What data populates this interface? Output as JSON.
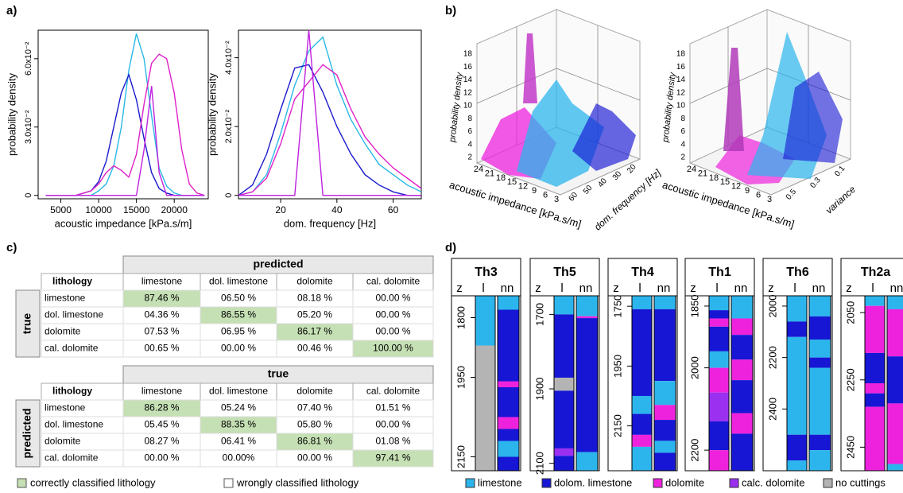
{
  "panel_labels": [
    "a)",
    "b)",
    "c)",
    "d)"
  ],
  "chart_data": [
    {
      "type": "line",
      "xlabel": "acoustic impedance [kPa.s/m]",
      "ylabel": "probability density",
      "x": [
        3000,
        5000,
        7000,
        9000,
        10000,
        11000,
        12000,
        13000,
        14000,
        15000,
        16000,
        17000,
        18000,
        19000,
        20000,
        21000,
        22000,
        23000,
        24000
      ],
      "xlim": [
        2000,
        24500
      ],
      "xticks": [
        5000,
        10000,
        15000,
        20000
      ],
      "ylim": [
        -0.0015,
        0.0725
      ],
      "yticks": [
        0,
        {
          "value": 0.03,
          "label": "3.0x10⁻²"
        },
        {
          "value": 0.06,
          "label": "6.0x10⁻²"
        }
      ],
      "series": [
        {
          "color": "#29b8e6",
          "values": [
            0,
            0,
            0,
            0,
            0.002,
            0.005,
            0.013,
            0.03,
            0.055,
            0.071,
            0.06,
            0.035,
            0.012,
            0.004,
            0.001,
            0,
            0,
            0,
            0
          ]
        },
        {
          "color": "#1a1acc",
          "values": [
            0,
            0,
            0,
            0.002,
            0.006,
            0.015,
            0.03,
            0.045,
            0.053,
            0.042,
            0.025,
            0.01,
            0.003,
            0.001,
            0,
            0,
            0,
            0,
            0
          ]
        },
        {
          "color": "#e020c8",
          "values": [
            0,
            0,
            0,
            0.002,
            0.005,
            0.01,
            0.013,
            0.011,
            0.008,
            0.018,
            0.04,
            0.058,
            0.062,
            0.06,
            0.045,
            0.02,
            0.005,
            0.001,
            0
          ]
        },
        {
          "color": "#c020e0",
          "values": [
            0,
            0,
            0,
            0,
            0,
            0,
            0,
            0,
            0,
            0,
            0.02,
            0.048,
            0.01,
            0,
            0,
            0,
            0,
            0,
            0
          ]
        }
      ]
    },
    {
      "type": "line",
      "xlabel": "dom. frequency [Hz]",
      "ylabel": "probability density",
      "x": [
        5,
        10,
        15,
        20,
        25,
        30,
        35,
        40,
        45,
        50,
        55,
        60,
        65,
        70
      ],
      "xlim": [
        5,
        70
      ],
      "xticks": [
        20,
        40,
        60
      ],
      "ylim": [
        -0.001,
        0.048
      ],
      "yticks": [
        0,
        {
          "value": 0.02,
          "label": "2.0x10⁻²"
        },
        {
          "value": 0.04,
          "label": "4.0x10⁻²"
        }
      ],
      "series": [
        {
          "color": "#29b8e6",
          "values": [
            0,
            0.001,
            0.006,
            0.018,
            0.032,
            0.042,
            0.046,
            0.032,
            0.022,
            0.015,
            0.009,
            0.006,
            0.003,
            0.001
          ]
        },
        {
          "color": "#1a1acc",
          "values": [
            0,
            0.003,
            0.012,
            0.025,
            0.037,
            0.038,
            0.03,
            0.02,
            0.012,
            0.006,
            0.003,
            0.001,
            0,
            0
          ]
        },
        {
          "color": "#e020c8",
          "values": [
            0,
            0.001,
            0.005,
            0.015,
            0.028,
            0.033,
            0.038,
            0.035,
            0.025,
            0.017,
            0.012,
            0.008,
            0.005,
            0.002
          ]
        },
        {
          "color": "#c020e0",
          "values": [
            0,
            0,
            0,
            0,
            0,
            0.048,
            0,
            0,
            0,
            0,
            0,
            0,
            0,
            0
          ]
        }
      ]
    }
  ],
  "panel_b": {
    "plots": [
      {
        "zlabel": "probability density",
        "xlabel": "acoustic impedance [kPa.s/m]",
        "ylabel": "dom. frequency [Hz]",
        "zticks": [
          2,
          4,
          6,
          8,
          10,
          12,
          14,
          16,
          18
        ],
        "xticks": [
          24,
          21,
          18,
          15,
          12,
          9,
          6,
          3
        ],
        "yticks": [
          60,
          50,
          40,
          30,
          20
        ]
      },
      {
        "zlabel": "probability density",
        "xlabel": "acoustic impedance [kPa.s/m]",
        "ylabel": "variance",
        "zticks": [
          2,
          4,
          6,
          8,
          10,
          12,
          14,
          16,
          18
        ],
        "xticks": [
          24,
          21,
          18,
          15,
          12,
          9,
          6,
          3
        ],
        "yticks": [
          0.5,
          0.3,
          0.1
        ]
      }
    ]
  },
  "panel_c": {
    "highlight_color": "#c5e0b4",
    "tables": [
      {
        "group_header": "predicted",
        "side_label": "true",
        "header": [
          "lithology",
          "limestone",
          "dol. limestone",
          "dolomite",
          "cal. dolomite"
        ],
        "rows": [
          [
            "limestone",
            "87.46 %",
            "06.50 %",
            "08.18 %",
            "00.00 %"
          ],
          [
            "dol. limestone",
            "04.36 %",
            "86.55 %",
            "05.20 %",
            "00.00 %"
          ],
          [
            "dolomite",
            "07.53 %",
            "06.95 %",
            "86.17 %",
            "00.00 %"
          ],
          [
            "cal. dolomite",
            "00.65 %",
            "00.00 %",
            "00.46 %",
            "100.00 %"
          ]
        ]
      },
      {
        "group_header": "true",
        "side_label": "predicted",
        "header": [
          "lithology",
          "limestone",
          "dol. limestone",
          "dolomite",
          "cal. dolomite"
        ],
        "rows": [
          [
            "limestone",
            "86.28 %",
            "05.24 %",
            "07.40 %",
            "01.51 %"
          ],
          [
            "dol. limestone",
            "05.45 %",
            "88.35 %",
            "05.80 %",
            "00.00 %"
          ],
          [
            "dolomite",
            "08.27 %",
            "06.41 %",
            "86.81 %",
            "01.08 %"
          ],
          [
            "cal. dolomite",
            "00.00 %",
            "00.00%",
            "00.00 %",
            "97.41 %"
          ]
        ]
      }
    ],
    "legend": [
      "correctly classified lithology",
      "wrongly classified lithology"
    ]
  },
  "panel_d": {
    "legend": [
      {
        "label": "limestone",
        "color": "#2bb5ec"
      },
      {
        "label": "dolom. limestone",
        "color": "#1616d4"
      },
      {
        "label": "dolomite",
        "color": "#ee22dd"
      },
      {
        "label": "calc. dolomite",
        "color": "#9b30f0"
      },
      {
        "label": "no cuttings",
        "color": "#b4b4b4"
      }
    ],
    "wells": [
      {
        "name": "Th3",
        "columns": [
          "z",
          "l",
          "nn"
        ],
        "ylim": [
          1745,
          2185
        ],
        "yticks": [
          1800,
          1950,
          2150
        ],
        "lithology": [
          [
            1745,
            1870,
            0
          ],
          [
            1870,
            2185,
            4
          ]
        ],
        "nn": [
          [
            1745,
            1780,
            0
          ],
          [
            1780,
            1960,
            1
          ],
          [
            1960,
            1975,
            2
          ],
          [
            1975,
            2050,
            1
          ],
          [
            2050,
            2080,
            2
          ],
          [
            2080,
            2110,
            1
          ],
          [
            2110,
            2150,
            0
          ],
          [
            2150,
            2185,
            1
          ]
        ]
      },
      {
        "name": "Th5",
        "columns": [
          "z",
          "l",
          "nn"
        ],
        "ylim": [
          1650,
          2120
        ],
        "yticks": [
          1700,
          1900,
          2100
        ],
        "lithology": [
          [
            1650,
            1700,
            0
          ],
          [
            1700,
            1870,
            1
          ],
          [
            1870,
            1905,
            4
          ],
          [
            1905,
            2060,
            1
          ],
          [
            2060,
            2080,
            3
          ],
          [
            2080,
            2120,
            1
          ]
        ],
        "nn": [
          [
            1650,
            1705,
            0
          ],
          [
            1705,
            1710,
            2
          ],
          [
            1710,
            2070,
            1
          ],
          [
            2070,
            2120,
            0
          ]
        ]
      },
      {
        "name": "Th4",
        "columns": [
          "z",
          "l",
          "nn"
        ],
        "ylim": [
          1715,
          2300
        ],
        "yticks": [
          1750,
          1950,
          2150
        ],
        "lithology": [
          [
            1715,
            1760,
            0
          ],
          [
            1760,
            2050,
            1
          ],
          [
            2050,
            2110,
            0
          ],
          [
            2110,
            2180,
            1
          ],
          [
            2180,
            2220,
            2
          ],
          [
            2220,
            2300,
            0
          ]
        ],
        "nn": [
          [
            1715,
            1760,
            0
          ],
          [
            1760,
            2000,
            1
          ],
          [
            2000,
            2080,
            0
          ],
          [
            2080,
            2130,
            2
          ],
          [
            2130,
            2200,
            1
          ],
          [
            2200,
            2240,
            0
          ],
          [
            2240,
            2300,
            1
          ]
        ]
      },
      {
        "name": "Th1",
        "columns": [
          "z",
          "l",
          "nn"
        ],
        "ylim": [
          1825,
          2250
        ],
        "yticks": [
          1850,
          2000,
          2200
        ],
        "lithology": [
          [
            1825,
            1860,
            0
          ],
          [
            1860,
            1880,
            1
          ],
          [
            1880,
            1900,
            2
          ],
          [
            1900,
            1960,
            1
          ],
          [
            1960,
            2000,
            0
          ],
          [
            2000,
            2060,
            2
          ],
          [
            2060,
            2130,
            3
          ],
          [
            2130,
            2200,
            1
          ],
          [
            2200,
            2250,
            2
          ]
        ],
        "nn": [
          [
            1825,
            1880,
            0
          ],
          [
            1880,
            1920,
            2
          ],
          [
            1920,
            1980,
            1
          ],
          [
            1980,
            2030,
            2
          ],
          [
            2030,
            2110,
            1
          ],
          [
            2110,
            2160,
            2
          ],
          [
            2160,
            2250,
            1
          ]
        ]
      },
      {
        "name": "Th6",
        "columns": [
          "z",
          "l",
          "nn"
        ],
        "ylim": [
          1960,
          2640
        ],
        "yticks": [
          2000,
          2200,
          2400
        ],
        "lithology": [
          [
            1960,
            2060,
            0
          ],
          [
            2060,
            2120,
            1
          ],
          [
            2120,
            2500,
            0
          ],
          [
            2500,
            2600,
            1
          ],
          [
            2600,
            2640,
            0
          ]
        ],
        "nn": [
          [
            1960,
            2040,
            0
          ],
          [
            2040,
            2130,
            1
          ],
          [
            2130,
            2200,
            0
          ],
          [
            2200,
            2240,
            1
          ],
          [
            2240,
            2500,
            0
          ],
          [
            2500,
            2560,
            1
          ],
          [
            2560,
            2640,
            0
          ]
        ]
      },
      {
        "name": "Th2a",
        "columns": [
          "z",
          "l",
          "nn"
        ],
        "ylim": [
          2000,
          2520
        ],
        "yticks": [
          2050,
          2250,
          2450
        ],
        "lithology": [
          [
            2000,
            2030,
            0
          ],
          [
            2030,
            2170,
            2
          ],
          [
            2170,
            2260,
            1
          ],
          [
            2260,
            2290,
            2
          ],
          [
            2290,
            2330,
            1
          ],
          [
            2330,
            2520,
            2
          ]
        ],
        "nn": [
          [
            2000,
            2040,
            0
          ],
          [
            2040,
            2180,
            2
          ],
          [
            2180,
            2320,
            1
          ],
          [
            2320,
            2500,
            2
          ],
          [
            2500,
            2520,
            0
          ]
        ]
      }
    ]
  }
}
